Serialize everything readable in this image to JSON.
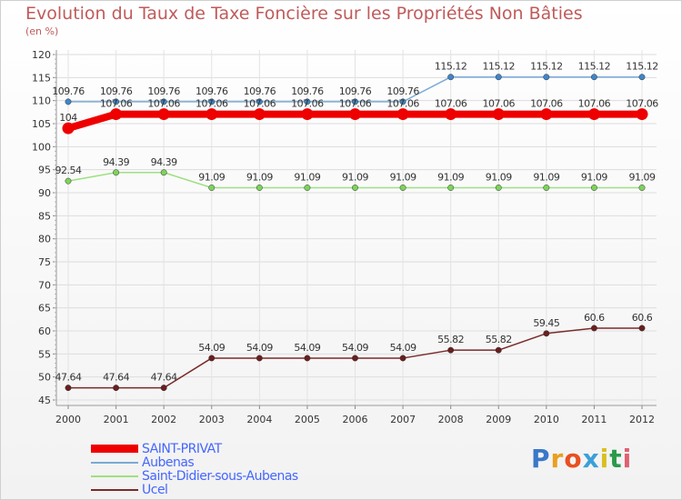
{
  "chart_data": {
    "type": "line",
    "title": "Evolution du Taux de Taxe Foncière sur les Propriétés Non Bâties",
    "subtitle": "(en %)",
    "xlabel": "",
    "ylabel": "",
    "x": [
      "2000",
      "2001",
      "2002",
      "2003",
      "2004",
      "2005",
      "2006",
      "2007",
      "2008",
      "2009",
      "2010",
      "2011",
      "2012"
    ],
    "ylim": [
      45,
      120
    ],
    "yticks": [
      45,
      50,
      55,
      60,
      65,
      70,
      75,
      80,
      85,
      90,
      95,
      100,
      105,
      110,
      115,
      120
    ],
    "grid": true,
    "legend_position": "bottom-left",
    "series": [
      {
        "name": "Aubenas",
        "color": "#7aaad6",
        "marker_color": "#3f86c9",
        "values": [
          109.76,
          109.76,
          109.76,
          109.76,
          109.76,
          109.76,
          109.76,
          109.76,
          115.12,
          115.12,
          115.12,
          115.12,
          115.12
        ],
        "labels": [
          "109.76",
          "109.76",
          "109.76",
          "109.76",
          "109.76",
          "109.76",
          "109.76",
          "109.76",
          "115.12",
          "115.12",
          "115.12",
          "115.12",
          "115.12"
        ]
      },
      {
        "name": "Saint-Didier-sous-Aubenas",
        "color": "#9ee082",
        "marker_color": "#7dd35a",
        "values": [
          92.54,
          94.39,
          94.39,
          91.09,
          91.09,
          91.09,
          91.09,
          91.09,
          91.09,
          91.09,
          91.09,
          91.09,
          91.09
        ],
        "labels": [
          "92.54",
          "94.39",
          "94.39",
          "91.09",
          "91.09",
          "91.09",
          "91.09",
          "91.09",
          "91.09",
          "91.09",
          "91.09",
          "91.09",
          "91.09"
        ]
      },
      {
        "name": "Ucel",
        "color": "#7a2a2a",
        "marker_color": "#6a1f1f",
        "values": [
          47.64,
          47.64,
          47.64,
          54.09,
          54.09,
          54.09,
          54.09,
          54.09,
          55.82,
          55.82,
          59.45,
          60.6,
          60.6
        ],
        "labels": [
          "47.64",
          "47.64",
          "47.64",
          "54.09",
          "54.09",
          "54.09",
          "54.09",
          "54.09",
          "55.82",
          "55.82",
          "59.45",
          "60.6",
          "60.6"
        ]
      },
      {
        "name": "SAINT-PRIVAT",
        "color": "#ee0000",
        "marker_color": "#ee0000",
        "thick": true,
        "values": [
          104,
          107.06,
          107.06,
          107.06,
          107.06,
          107.06,
          107.06,
          107.06,
          107.06,
          107.06,
          107.06,
          107.06,
          107.06
        ],
        "labels": [
          "104",
          "107.06",
          "107.06",
          "107.06",
          "107.06",
          "107.06",
          "107.06",
          "107.06",
          "107.06",
          "107.06",
          "107.06",
          "107.06",
          "107.06"
        ]
      }
    ]
  },
  "legend": [
    {
      "label": "SAINT-PRIVAT",
      "color": "#ee0000",
      "thick": true
    },
    {
      "label": "Aubenas",
      "color": "#7aaad6"
    },
    {
      "label": "Saint-Didier-sous-Aubenas",
      "color": "#9ee082"
    },
    {
      "label": "Ucel",
      "color": "#7a2a2a"
    }
  ],
  "logo": {
    "letters": [
      "P",
      "r",
      "o",
      "x",
      "i",
      "t",
      "i"
    ],
    "colors": [
      "#3a78c8",
      "#e8a020",
      "#e85020",
      "#3aa0d8",
      "#d8c020",
      "#2a9a4a",
      "#e06070"
    ]
  }
}
